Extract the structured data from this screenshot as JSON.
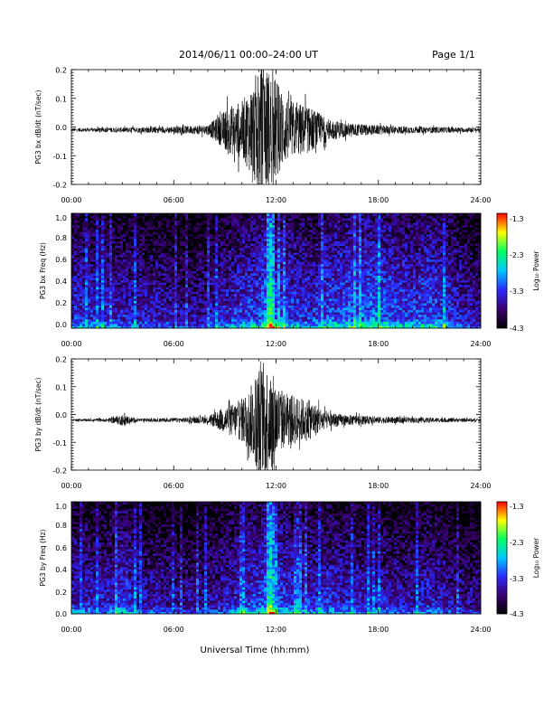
{
  "header": {
    "title": "2014/06/11   00:00–24:00 UT",
    "page": "Page 1/1"
  },
  "footer": {
    "xlabel": "Universal Time (hh:mm)"
  },
  "colors": {
    "trace": "#000000",
    "colorbar": [
      "#000000",
      "#3a0070",
      "#2a2aff",
      "#00c8ff",
      "#00ff60",
      "#ffff00",
      "#ff0000"
    ]
  },
  "chart_data": [
    {
      "type": "line",
      "id": "bx-timeseries",
      "ylabel": "PG3 bx dB/dt (nT/sec)",
      "xlim": [
        0,
        24
      ],
      "ylim": [
        -0.2,
        0.2
      ],
      "xticks": [
        "00:00",
        "06:00",
        "12:00",
        "18:00",
        "24:00"
      ],
      "yticks": [
        "-0.2",
        "-0.1",
        "0.0",
        "0.1",
        "0.2"
      ],
      "series": [
        {
          "x": [
            0,
            2,
            4,
            6,
            7,
            8,
            8.5,
            9,
            9.5,
            10,
            10.5,
            11,
            11.5,
            12,
            12.5,
            13,
            13.5,
            14,
            14.5,
            15,
            16,
            17,
            18,
            20,
            22,
            24
          ],
          "amplitude": [
            0.006,
            0.008,
            0.01,
            0.012,
            0.014,
            0.018,
            0.04,
            0.07,
            0.09,
            0.1,
            0.15,
            0.22,
            0.22,
            0.18,
            0.12,
            0.1,
            0.09,
            0.08,
            0.06,
            0.04,
            0.025,
            0.02,
            0.016,
            0.012,
            0.01,
            0.008
          ],
          "baseline": -0.01
        }
      ]
    },
    {
      "type": "heatmap",
      "id": "bx-spectrogram",
      "ylabel": "PG3 bx Freq (Hz)",
      "xlim": [
        0,
        24
      ],
      "ylim": [
        0.0,
        1.0
      ],
      "xticks": [
        "00:00",
        "06:00",
        "12:00",
        "18:00",
        "24:00"
      ],
      "yticks": [
        "0.0",
        "0.2",
        "0.4",
        "0.6",
        "0.8",
        "1.0"
      ],
      "colorbar": {
        "label": "Log₁₀ Power",
        "range": [
          -4.3,
          -1.3
        ],
        "ticks": [
          "-1.3",
          "-2.3",
          "-3.3",
          "-4.3"
        ]
      },
      "activity_profile": {
        "x": [
          0,
          2,
          4,
          6,
          7,
          8,
          9,
          10,
          11,
          11.7,
          12,
          13,
          14,
          15,
          16,
          17,
          18,
          19,
          20,
          21,
          22,
          23,
          24
        ],
        "level": [
          0.45,
          0.4,
          0.35,
          0.3,
          0.25,
          0.3,
          0.4,
          0.5,
          0.55,
          0.9,
          0.6,
          0.5,
          0.45,
          0.55,
          0.6,
          0.65,
          0.65,
          0.55,
          0.5,
          0.6,
          0.5,
          0.35,
          0.25
        ]
      }
    },
    {
      "type": "line",
      "id": "by-timeseries",
      "ylabel": "PG3 by dB/dt (nT/sec)",
      "xlim": [
        0,
        24
      ],
      "ylim": [
        -0.2,
        0.2
      ],
      "xticks": [
        "00:00",
        "06:00",
        "12:00",
        "18:00",
        "24:00"
      ],
      "yticks": [
        "-0.2",
        "-0.1",
        "0.0",
        "0.1",
        "0.2"
      ],
      "series": [
        {
          "x": [
            0,
            2,
            3,
            3.5,
            4,
            6,
            7,
            8,
            8.5,
            9,
            9.5,
            10,
            10.5,
            11,
            11.5,
            12,
            12.5,
            13,
            13.5,
            14,
            14.5,
            15,
            16,
            17,
            18,
            20,
            22,
            24
          ],
          "amplitude": [
            0.004,
            0.006,
            0.02,
            0.012,
            0.006,
            0.008,
            0.01,
            0.014,
            0.03,
            0.05,
            0.06,
            0.08,
            0.12,
            0.2,
            0.2,
            0.14,
            0.1,
            0.09,
            0.08,
            0.07,
            0.05,
            0.03,
            0.02,
            0.016,
            0.012,
            0.01,
            0.008,
            0.006
          ],
          "baseline": -0.02
        }
      ]
    },
    {
      "type": "heatmap",
      "id": "by-spectrogram",
      "ylabel": "PG3 by Freq (Hz)",
      "xlim": [
        0,
        24
      ],
      "ylim": [
        0.0,
        1.0
      ],
      "xticks": [
        "00:00",
        "06:00",
        "12:00",
        "18:00",
        "24:00"
      ],
      "yticks": [
        "0.0",
        "0.2",
        "0.4",
        "0.6",
        "0.8",
        "1.0"
      ],
      "colorbar": {
        "label": "Log₁₀ Power",
        "range": [
          -4.3,
          -1.3
        ],
        "ticks": [
          "-1.3",
          "-2.3",
          "-3.3",
          "-4.3"
        ]
      },
      "activity_profile": {
        "x": [
          0,
          2,
          3,
          4,
          6,
          7,
          8,
          9,
          10,
          11,
          11.7,
          12,
          13,
          14,
          15,
          16,
          17,
          18,
          19,
          20,
          21,
          22,
          23,
          24
        ],
        "level": [
          0.4,
          0.35,
          0.5,
          0.3,
          0.25,
          0.22,
          0.28,
          0.35,
          0.45,
          0.5,
          0.85,
          0.55,
          0.45,
          0.4,
          0.45,
          0.4,
          0.35,
          0.35,
          0.3,
          0.3,
          0.4,
          0.3,
          0.22,
          0.2
        ]
      }
    }
  ]
}
